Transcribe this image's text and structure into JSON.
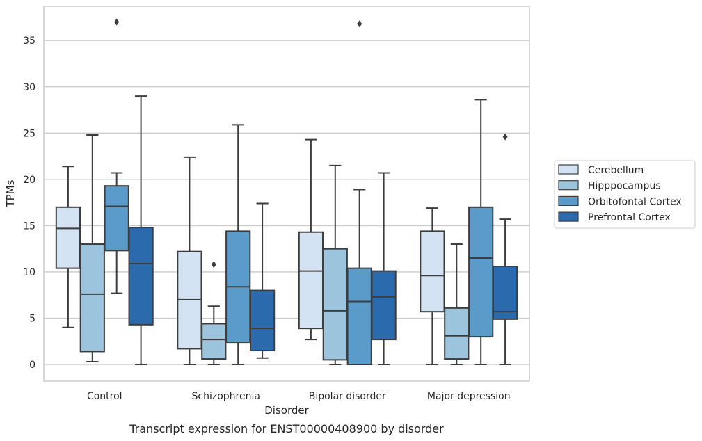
{
  "chart_data": {
    "type": "box",
    "title": "",
    "caption": "Transcript expression for ENST00000408900 by disorder",
    "xlabel": "Disorder",
    "ylabel": "TPMs",
    "ylim": [
      -1.8,
      38.7
    ],
    "yticks": [
      0,
      5,
      10,
      15,
      20,
      25,
      30,
      35
    ],
    "grid": "horizontal",
    "legend_position": "center-right",
    "categories": [
      "Control",
      "Schizophrenia",
      "Bipolar disorder",
      "Major depression"
    ],
    "series": [
      {
        "name": "Cerebellum",
        "color": "#d4e3f3",
        "boxes": [
          {
            "whisker_low": 4.0,
            "q1": 10.4,
            "median": 14.7,
            "q3": 17.0,
            "whisker_high": 21.4,
            "outliers": []
          },
          {
            "whisker_low": 0.0,
            "q1": 1.7,
            "median": 7.0,
            "q3": 12.2,
            "whisker_high": 22.4,
            "outliers": []
          },
          {
            "whisker_low": 2.7,
            "q1": 3.9,
            "median": 10.1,
            "q3": 14.3,
            "whisker_high": 24.3,
            "outliers": []
          },
          {
            "whisker_low": 0.0,
            "q1": 5.7,
            "median": 9.6,
            "q3": 14.4,
            "whisker_high": 16.9,
            "outliers": []
          }
        ]
      },
      {
        "name": "Hipppocampus",
        "color": "#9cc4dd",
        "boxes": [
          {
            "whisker_low": 0.3,
            "q1": 1.4,
            "median": 7.6,
            "q3": 13.0,
            "whisker_high": 24.8,
            "outliers": []
          },
          {
            "whisker_low": 0.0,
            "q1": 0.6,
            "median": 2.7,
            "q3": 4.4,
            "whisker_high": 6.3,
            "outliers": [
              10.8
            ]
          },
          {
            "whisker_low": 0.0,
            "q1": 0.5,
            "median": 5.8,
            "q3": 12.5,
            "whisker_high": 21.5,
            "outliers": []
          },
          {
            "whisker_low": 0.0,
            "q1": 0.6,
            "median": 3.1,
            "q3": 6.1,
            "whisker_high": 13.0,
            "outliers": []
          }
        ]
      },
      {
        "name": "Orbitofontal Cortex",
        "color": "#5b9bc9",
        "boxes": [
          {
            "whisker_low": 7.7,
            "q1": 12.3,
            "median": 17.1,
            "q3": 19.3,
            "whisker_high": 20.7,
            "outliers": [
              37.0
            ]
          },
          {
            "whisker_low": 0.0,
            "q1": 2.4,
            "median": 8.4,
            "q3": 14.4,
            "whisker_high": 25.9,
            "outliers": []
          },
          {
            "whisker_low": 0.0,
            "q1": 0.0,
            "median": 6.8,
            "q3": 10.4,
            "whisker_high": 18.9,
            "outliers": [
              36.8
            ]
          },
          {
            "whisker_low": 0.0,
            "q1": 3.0,
            "median": 11.5,
            "q3": 17.0,
            "whisker_high": 28.6,
            "outliers": []
          }
        ]
      },
      {
        "name": "Prefrontal Cortex",
        "color": "#2a6aad",
        "boxes": [
          {
            "whisker_low": 0.0,
            "q1": 4.3,
            "median": 10.9,
            "q3": 14.8,
            "whisker_high": 29.0,
            "outliers": []
          },
          {
            "whisker_low": 0.7,
            "q1": 1.5,
            "median": 3.9,
            "q3": 8.0,
            "whisker_high": 17.4,
            "outliers": []
          },
          {
            "whisker_low": 0.0,
            "q1": 2.7,
            "median": 7.3,
            "q3": 10.1,
            "whisker_high": 20.7,
            "outliers": []
          },
          {
            "whisker_low": 0.0,
            "q1": 4.9,
            "median": 5.7,
            "q3": 10.6,
            "whisker_high": 15.7,
            "outliers": [
              24.6
            ]
          }
        ]
      }
    ]
  }
}
